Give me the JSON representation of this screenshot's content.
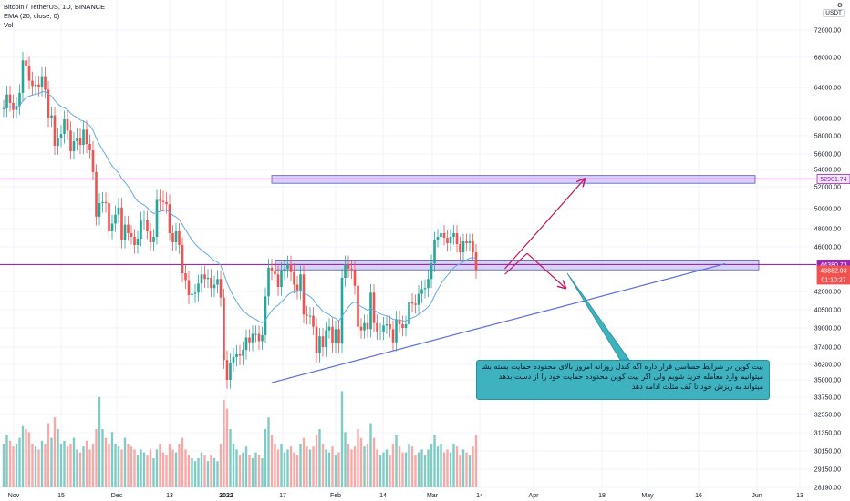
{
  "header": {
    "title": "Bitcoin / TetherUS, 1D, BINANCE",
    "indicator": "EMA (20, close, 0)",
    "volume_label": "Vol",
    "settings_icon": "gear-icon",
    "currency_badge": "USDT"
  },
  "price_badges": {
    "resistance": "52901.74",
    "support": "44380.73",
    "last": "43882.93",
    "countdown": "01:10:27"
  },
  "callout": {
    "lines": [
      "بیت کوین در شرایط حساسی قرار داره اگه کندل روزانه امروز بالای محدوده حمایت بسته بشه",
      "میتوانیم وارد معامله خرید شویم ولی اگر بیت کوین محدوده حمایت خود را از دست بدهد",
      "میتواند به ریزش خود تا کف مثلث ادامه دهد"
    ]
  },
  "colors": {
    "up": "#26a69a",
    "down": "#ef5350",
    "volume_up": "#80cbc4",
    "volume_down": "#f7a9a7",
    "ema": "#64a9e0",
    "horizontal_lines": "#9c27b0",
    "zone_fill": "#c5c0f0",
    "trendline": "#5b6ee0",
    "arrows": "#c2185b",
    "callout": "#3fb2c0"
  },
  "chart_data": {
    "type": "candlestick",
    "title": "Bitcoin / TetherUS, 1D, BINANCE",
    "y_ticks": [
      72000,
      68000,
      64000,
      60000,
      58000,
      56000,
      54000,
      52000,
      50000,
      48000,
      46000,
      42000,
      40500,
      39000,
      37400,
      36200,
      35000,
      33750,
      32550,
      31350,
      30150,
      29150,
      28190
    ],
    "x_ticks": [
      "Nov",
      "15",
      "Dec",
      "13",
      "2022",
      "17",
      "Feb",
      "14",
      "Mar",
      "14",
      "Apr",
      "18",
      "May",
      "16",
      "Jun",
      "13"
    ],
    "start_date": "2021-11-01",
    "closes": [
      61300,
      63100,
      62000,
      61100,
      61600,
      63300,
      67600,
      66900,
      64900,
      64200,
      64400,
      64000,
      65500,
      63700,
      60100,
      60400,
      56900,
      57800,
      58200,
      59900,
      58600,
      56300,
      57400,
      57800,
      57000,
      58700,
      57100,
      56400,
      53700,
      49200,
      50500,
      50600,
      50500,
      47700,
      48500,
      49400,
      50100,
      46700,
      48400,
      47500,
      47100,
      46200,
      46900,
      48800,
      48900,
      47700,
      46500,
      47100,
      50800,
      50700,
      50600,
      50400,
      47500,
      46500,
      47700,
      46200,
      43600,
      43000,
      41700,
      41800,
      41900,
      42700,
      43500,
      43100,
      43200,
      42300,
      42600,
      43100,
      41500,
      36500,
      35000,
      36300,
      36700,
      36900,
      36800,
      37200,
      38200,
      37800,
      38500,
      38500,
      37900,
      38400,
      41600,
      44100,
      43800,
      43500,
      42400,
      43800,
      44000,
      44400,
      43700,
      42600,
      42100,
      43500,
      40100,
      40000,
      40000,
      39100,
      37000,
      38300,
      37400,
      38800,
      39100,
      37700,
      38900,
      37700,
      43200,
      44400,
      44000,
      43900,
      42500,
      39100,
      38800,
      39400,
      38900,
      41900,
      39400,
      38700,
      38700,
      39200,
      39300,
      38900,
      37800,
      39700,
      39300,
      39000,
      39300,
      41100,
      41000,
      40900,
      41800,
      42200,
      42300,
      43100,
      44500,
      46800,
      47100,
      47500,
      47000,
      46400,
      47100,
      47500,
      46300,
      45500,
      46600,
      46400,
      46600,
      45500,
      43900
    ],
    "opens": [
      61300,
      61300,
      63100,
      62000,
      61100,
      61600,
      63300,
      67600,
      66900,
      64900,
      64200,
      64400,
      64000,
      65500,
      63700,
      60100,
      60400,
      56900,
      57800,
      58200,
      59900,
      58600,
      56300,
      57400,
      57800,
      57000,
      58700,
      57100,
      56400,
      53700,
      49200,
      50500,
      50600,
      50500,
      47700,
      48500,
      49400,
      50100,
      46700,
      48400,
      47500,
      47100,
      46200,
      46900,
      48800,
      48900,
      47700,
      46500,
      47100,
      50800,
      50700,
      50600,
      50400,
      47500,
      46500,
      47700,
      46200,
      43600,
      43000,
      41700,
      41800,
      41900,
      42700,
      43500,
      43100,
      43200,
      42300,
      42600,
      43100,
      41500,
      36500,
      35000,
      36300,
      36700,
      36900,
      36800,
      37200,
      38200,
      37800,
      38500,
      38500,
      37900,
      38400,
      41600,
      44100,
      43800,
      43500,
      42400,
      43800,
      44000,
      44400,
      43700,
      42600,
      42100,
      43500,
      40100,
      40000,
      40000,
      39100,
      37000,
      38300,
      37400,
      38800,
      39100,
      37700,
      38900,
      37700,
      43200,
      44400,
      44000,
      43900,
      42500,
      39100,
      38800,
      39400,
      38900,
      41900,
      39400,
      38700,
      38700,
      39200,
      39300,
      38900,
      37800,
      39700,
      39300,
      39000,
      39300,
      41100,
      41000,
      40900,
      41800,
      42200,
      42300,
      43100,
      44500,
      46800,
      47100,
      47500,
      47000,
      46400,
      47100,
      47500,
      46300,
      45500,
      46600,
      46400,
      46600,
      45500
    ],
    "volumes": [
      30,
      36,
      32,
      28,
      30,
      34,
      42,
      40,
      38,
      30,
      28,
      26,
      32,
      30,
      44,
      34,
      48,
      40,
      30,
      32,
      28,
      30,
      34,
      26,
      24,
      28,
      32,
      26,
      30,
      40,
      62,
      40,
      34,
      30,
      38,
      30,
      28,
      26,
      34,
      30,
      28,
      26,
      22,
      26,
      24,
      22,
      26,
      20,
      26,
      30,
      24,
      22,
      30,
      26,
      24,
      30,
      34,
      26,
      22,
      20,
      18,
      20,
      24,
      22,
      18,
      22,
      20,
      18,
      30,
      60,
      54,
      40,
      30,
      26,
      22,
      24,
      28,
      22,
      20,
      24,
      22,
      20,
      40,
      48,
      36,
      30,
      26,
      30,
      24,
      26,
      28,
      24,
      22,
      30,
      34,
      28,
      26,
      28,
      36,
      40,
      30,
      26,
      24,
      28,
      22,
      24,
      66,
      38,
      30,
      26,
      28,
      40,
      34,
      28,
      30,
      44,
      34,
      26,
      22,
      24,
      26,
      22,
      30,
      36,
      28,
      24,
      24,
      30,
      28,
      22,
      24,
      26,
      22,
      26,
      30,
      36,
      28,
      30,
      24,
      26,
      24,
      30,
      28,
      22,
      26,
      24,
      22,
      28,
      36
    ],
    "ema_period": 20,
    "horizontal_levels": [
      52901.74,
      44380.73
    ],
    "zones": [
      [
        52400,
        53300
      ],
      [
        43900,
        44800
      ]
    ],
    "trendline": {
      "from": [
        "2022-01-24",
        34800
      ],
      "to": [
        "2022-06-15",
        44450
      ]
    },
    "arrows": [
      {
        "from": [
          "2022-04-07",
          44000
        ],
        "to": [
          "2022-05-02",
          52900
        ]
      },
      {
        "from": [
          "2022-04-07",
          43500
        ],
        "to": [
          "2022-04-14",
          45400
        ]
      },
      {
        "from": [
          "2022-04-14",
          45400
        ],
        "to": [
          "2022-04-26",
          42300
        ]
      }
    ]
  }
}
